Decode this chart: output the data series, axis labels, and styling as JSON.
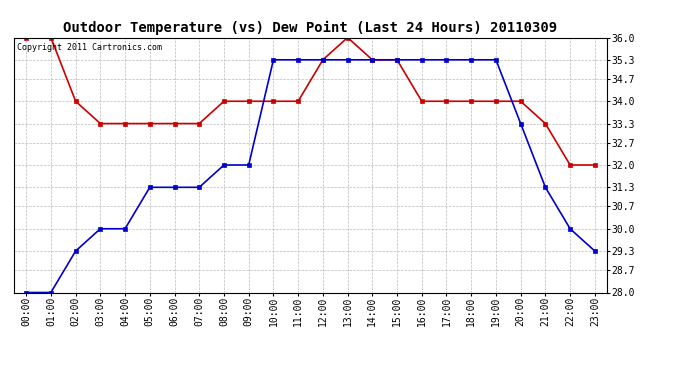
{
  "title": "Outdoor Temperature (vs) Dew Point (Last 24 Hours) 20110309",
  "copyright_text": "Copyright 2011 Cartronics.com",
  "hours": [
    "00:00",
    "01:00",
    "02:00",
    "03:00",
    "04:00",
    "05:00",
    "06:00",
    "07:00",
    "08:00",
    "09:00",
    "10:00",
    "11:00",
    "12:00",
    "13:00",
    "14:00",
    "15:00",
    "16:00",
    "17:00",
    "18:00",
    "19:00",
    "20:00",
    "21:00",
    "22:00",
    "23:00"
  ],
  "temp_data": [
    36.0,
    36.0,
    34.0,
    33.3,
    33.3,
    33.3,
    33.3,
    33.3,
    34.0,
    34.0,
    34.0,
    34.0,
    35.3,
    36.0,
    35.3,
    35.3,
    34.0,
    34.0,
    34.0,
    34.0,
    34.0,
    33.3,
    32.0,
    32.0
  ],
  "dew_data": [
    28.0,
    28.0,
    29.3,
    30.0,
    30.0,
    31.3,
    31.3,
    31.3,
    32.0,
    32.0,
    35.3,
    35.3,
    35.3,
    35.3,
    35.3,
    35.3,
    35.3,
    35.3,
    35.3,
    35.3,
    33.3,
    31.3,
    30.0,
    29.3
  ],
  "temp_color": "#cc0000",
  "dew_color": "#0000cc",
  "bg_color": "#ffffff",
  "grid_color": "#bbbbbb",
  "ylim_min": 28.0,
  "ylim_max": 36.0,
  "ytick_values": [
    28.0,
    28.7,
    29.3,
    30.0,
    30.7,
    31.3,
    32.0,
    32.7,
    33.3,
    34.0,
    34.7,
    35.3,
    36.0
  ],
  "ytick_labels": [
    "28.0",
    "28.7",
    "29.3",
    "30.0",
    "30.7",
    "31.3",
    "32.0",
    "32.7",
    "33.3",
    "34.0",
    "34.7",
    "35.3",
    "36.0"
  ],
  "title_fontsize": 10,
  "tick_fontsize": 7,
  "copyright_fontsize": 6,
  "marker": "s",
  "marker_size": 2.5,
  "linewidth": 1.2
}
